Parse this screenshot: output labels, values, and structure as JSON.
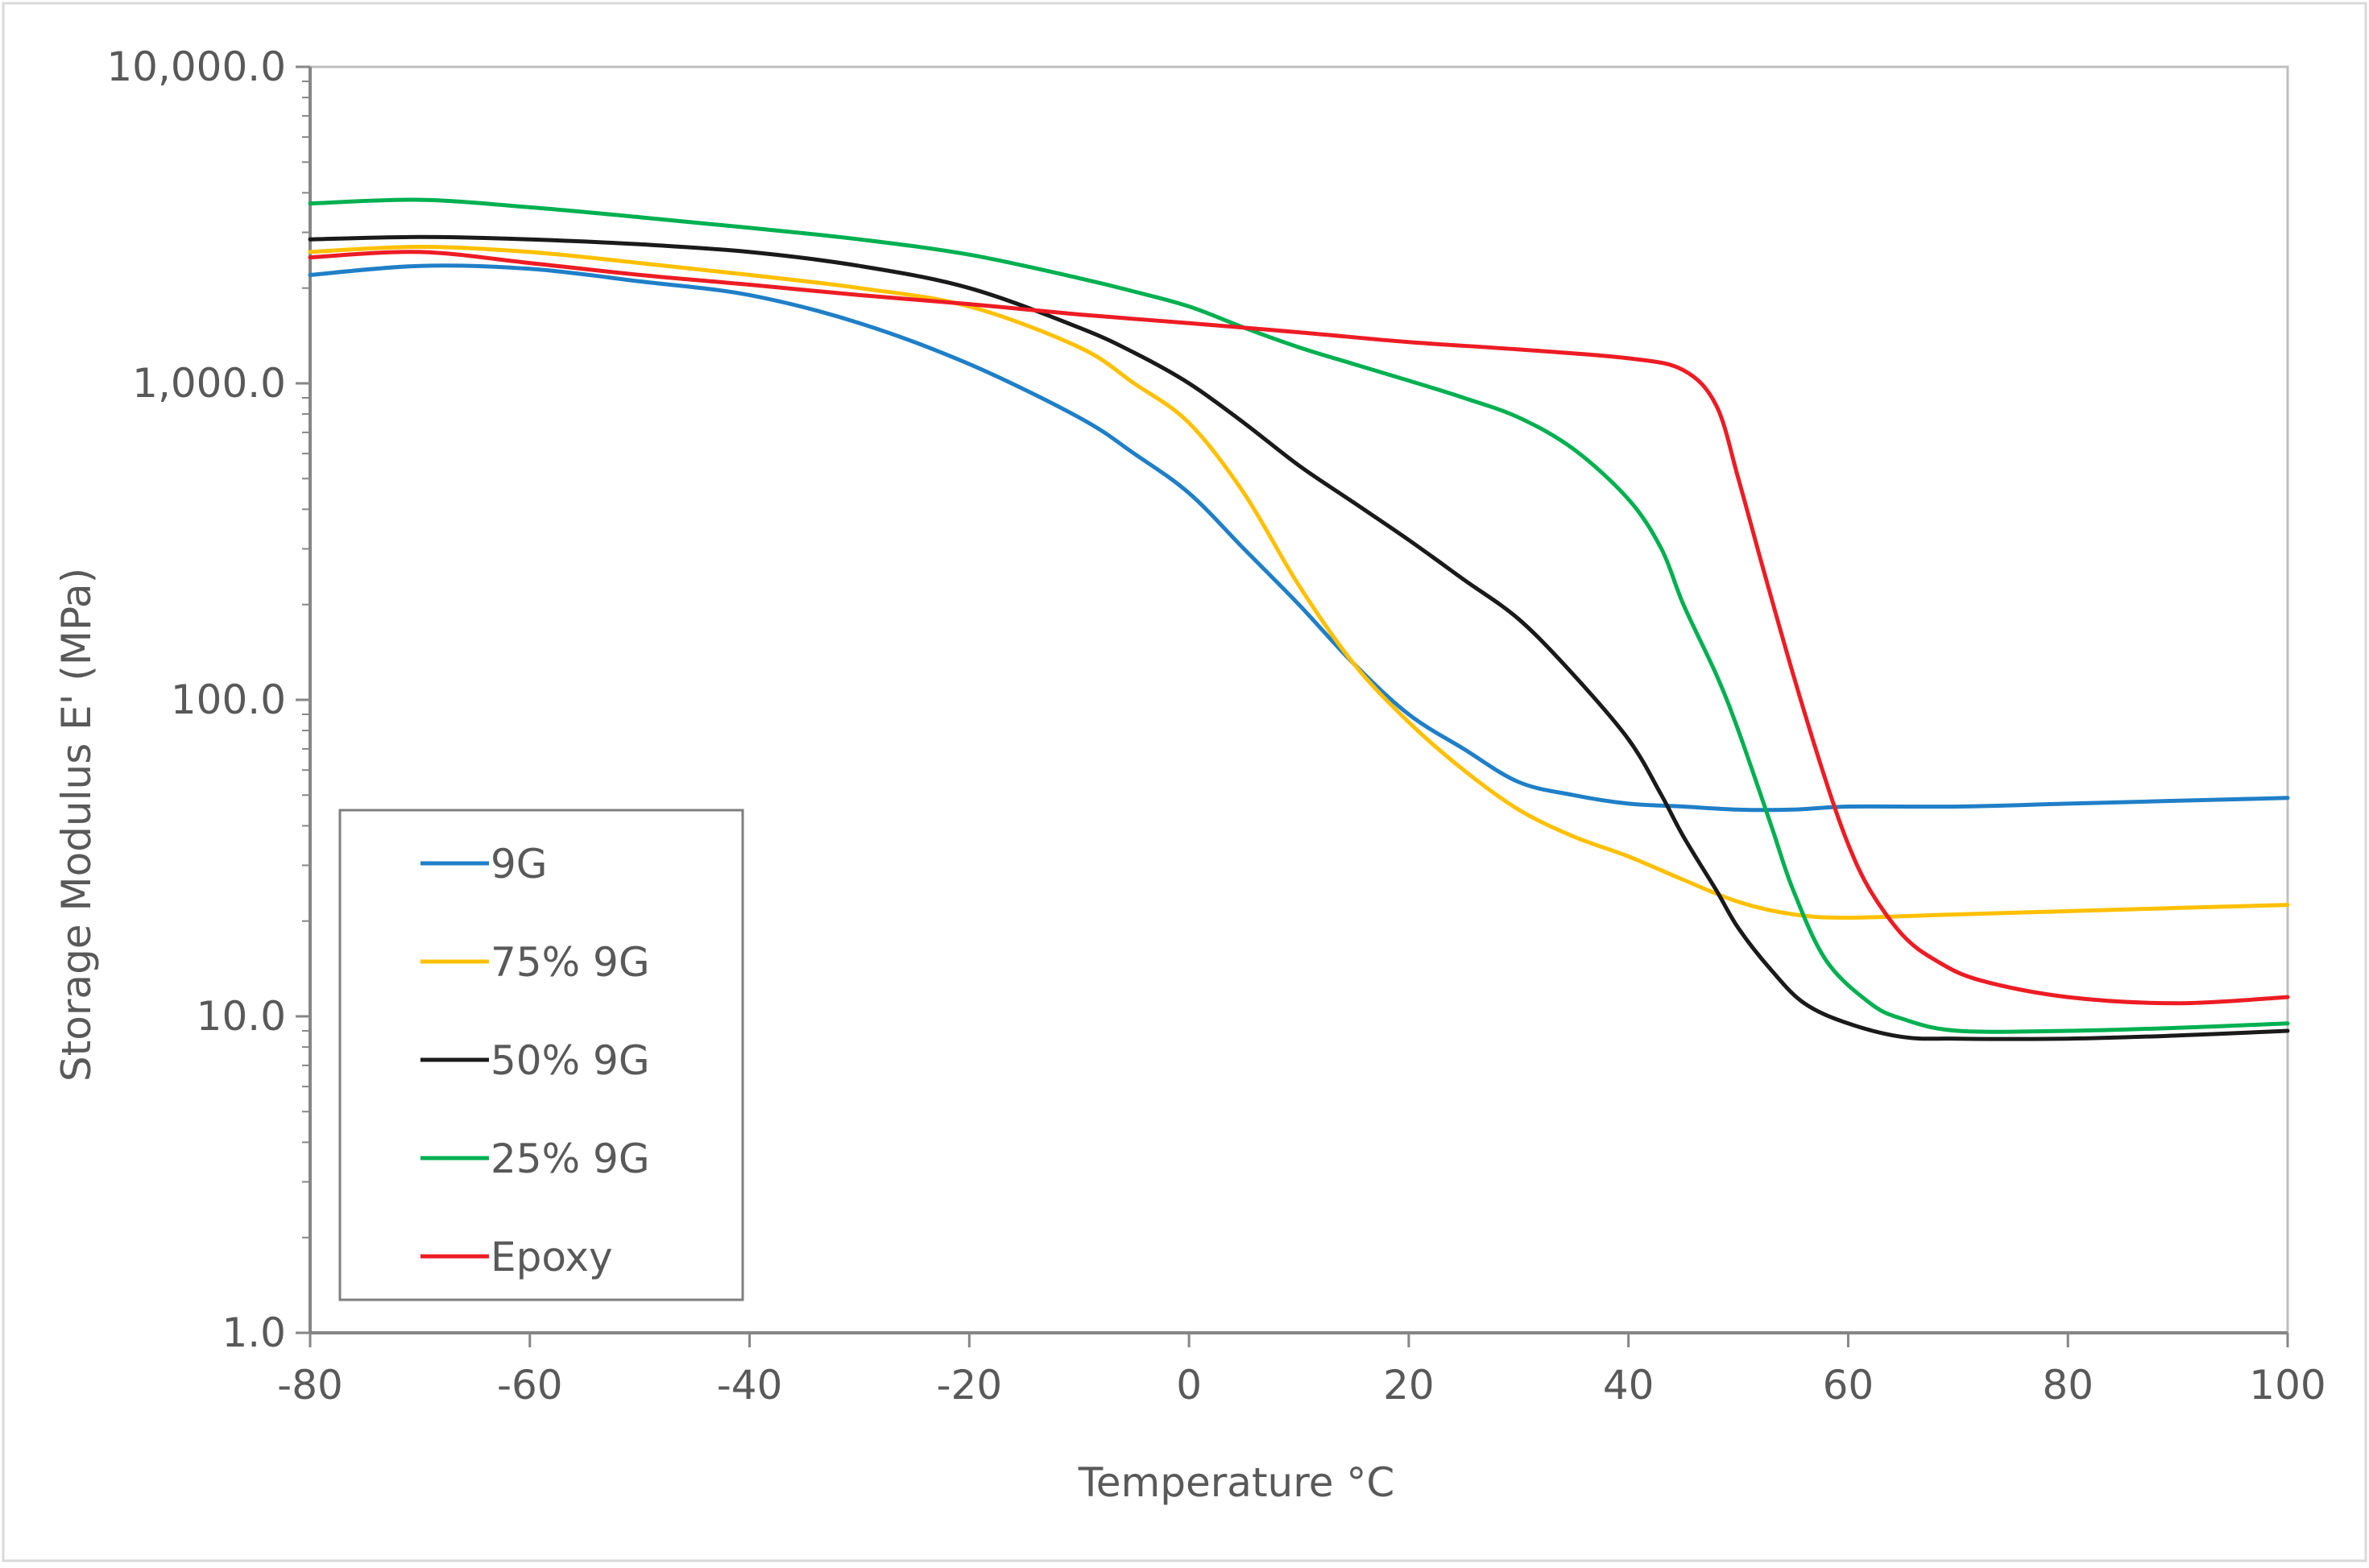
{
  "chart_data": {
    "type": "line",
    "title": "",
    "xlabel": "Temperature °C",
    "ylabel": "Storage Modulus E' (MPa)",
    "xlim": [
      -80,
      100
    ],
    "ylim": [
      1,
      10000
    ],
    "yscale": "log",
    "grid": false,
    "legend_position": "bottom-left",
    "x_ticks": [
      -80,
      -60,
      -40,
      -20,
      0,
      20,
      40,
      60,
      80,
      100
    ],
    "x_tick_labels": [
      "-80",
      "-60",
      "-40",
      "-20",
      "0",
      "20",
      "40",
      "60",
      "80",
      "100"
    ],
    "y_ticks": [
      1,
      10,
      100,
      1000,
      10000
    ],
    "y_tick_labels": [
      "1.0",
      "10.0",
      "100.0",
      "1,000.0",
      "10,000.0"
    ],
    "series": [
      {
        "name": "9G",
        "color": "#1f7fc7",
        "x": [
          -80,
          -70,
          -60,
          -50,
          -40,
          -30,
          -20,
          -10,
          -5,
          0,
          5,
          10,
          15,
          20,
          25,
          30,
          35,
          40,
          45,
          50,
          55,
          60,
          70,
          80,
          90,
          100
        ],
        "y": [
          2200,
          2350,
          2300,
          2100,
          1900,
          1550,
          1150,
          780,
          600,
          450,
          300,
          200,
          130,
          90,
          70,
          55,
          50,
          47,
          46,
          45,
          45,
          46,
          46,
          47,
          48,
          49
        ]
      },
      {
        "name": "75% 9G",
        "color": "#ffc000",
        "x": [
          -80,
          -70,
          -60,
          -50,
          -40,
          -30,
          -20,
          -10,
          -5,
          0,
          5,
          10,
          15,
          20,
          25,
          30,
          35,
          40,
          45,
          50,
          55,
          60,
          70,
          80,
          90,
          100
        ],
        "y": [
          2600,
          2700,
          2600,
          2400,
          2200,
          2000,
          1750,
          1300,
          1000,
          750,
          450,
          230,
          130,
          85,
          60,
          45,
          37,
          32,
          27,
          23,
          21,
          20.5,
          21,
          21.5,
          22,
          22.5
        ]
      },
      {
        "name": "50% 9G",
        "color": "#1a1a1a",
        "x": [
          -80,
          -70,
          -60,
          -50,
          -40,
          -30,
          -20,
          -10,
          -5,
          0,
          5,
          10,
          15,
          20,
          25,
          30,
          35,
          40,
          43,
          45,
          48,
          50,
          53,
          56,
          60,
          65,
          70,
          80,
          90,
          100
        ],
        "y": [
          2850,
          2900,
          2850,
          2750,
          2600,
          2350,
          2000,
          1500,
          1250,
          1000,
          750,
          550,
          420,
          320,
          240,
          180,
          120,
          75,
          50,
          37,
          25,
          19,
          14,
          11,
          9.5,
          8.6,
          8.5,
          8.5,
          8.7,
          9
        ]
      },
      {
        "name": "25% 9G",
        "color": "#00b050",
        "x": [
          -80,
          -70,
          -60,
          -50,
          -40,
          -30,
          -20,
          -10,
          -5,
          0,
          5,
          10,
          15,
          20,
          25,
          30,
          35,
          40,
          43,
          45,
          48,
          50,
          53,
          55,
          58,
          62,
          65,
          70,
          80,
          90,
          100
        ],
        "y": [
          3700,
          3800,
          3600,
          3350,
          3100,
          2850,
          2550,
          2150,
          1950,
          1750,
          1500,
          1300,
          1150,
          1020,
          900,
          780,
          620,
          430,
          300,
          200,
          120,
          80,
          40,
          25,
          15,
          11,
          9.8,
          9.0,
          9.0,
          9.2,
          9.5
        ]
      },
      {
        "name": "Epoxy",
        "color": "#ed1c24",
        "x": [
          -80,
          -70,
          -60,
          -50,
          -40,
          -30,
          -20,
          -10,
          0,
          10,
          20,
          30,
          40,
          45,
          48,
          50,
          52,
          55,
          58,
          60,
          62,
          65,
          68,
          72,
          80,
          90,
          100
        ],
        "y": [
          2500,
          2600,
          2400,
          2200,
          2050,
          1900,
          1780,
          1650,
          1550,
          1450,
          1350,
          1280,
          1200,
          1100,
          850,
          500,
          280,
          120,
          55,
          35,
          25,
          18,
          15,
          13,
          11.5,
          11,
          11.5
        ]
      }
    ]
  }
}
